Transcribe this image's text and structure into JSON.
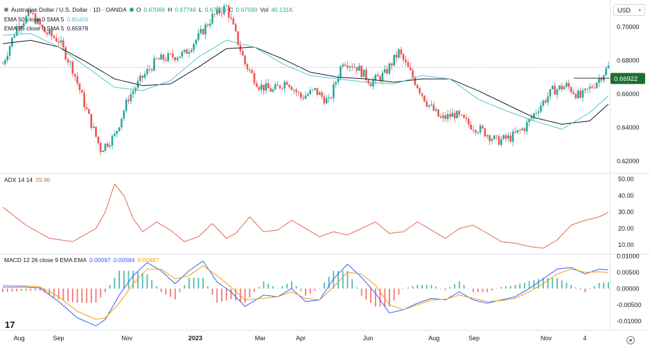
{
  "header": {
    "symbol": "Australian Dollar / U.S. Dollar · 1D · OANDA",
    "o_label": "O",
    "o_value": "0.67066",
    "h_label": "H",
    "h_value": "0.67746",
    "l_label": "L",
    "l_value": "0.67006",
    "c_label": "C",
    "c_value": "0.67590",
    "vol_label": "Vol",
    "vol_value": "46.131K",
    "ema50_label": "EMA 50 close 0 SMA 5",
    "ema50_value": "0.65400",
    "ema25_label": "EMA 25 close 0 SMA 5",
    "ema25_value": "0.65978"
  },
  "currency": "USD",
  "colors": {
    "up": "#26a69a",
    "down": "#ef5350",
    "ema50": "#131722",
    "ema25": "#4dc6d1",
    "adx": "#e0664f",
    "macd": "#2962ff",
    "signal": "#ff9800",
    "hist_up": "#26a69a",
    "hist_down": "#ef5350",
    "price_tag": "#1b6e2f"
  },
  "price_tag": "0.66922",
  "adx_panel": {
    "label": "ADX 14 14",
    "value": "29.96"
  },
  "macd_panel": {
    "label": "MACD 12 26 close 9 EMA EMA",
    "v1": "0.00097",
    "v2": "0.00584",
    "v3": "0.00487"
  },
  "icons": {
    "logo": "tradingview-logo-icon",
    "settings": "settings-icon"
  },
  "chart_data": [
    {
      "type": "candlestick",
      "title": "Australian Dollar / U.S. Dollar · 1D · OANDA",
      "x_ticks": [
        "Aug",
        "Sep",
        "Nov",
        "2023",
        "Mar",
        "Apr",
        "Jun",
        "Aug",
        "Sep",
        "Nov",
        "4"
      ],
      "y_ticks": [
        0.62,
        0.64,
        0.66,
        0.68,
        0.7
      ],
      "ylim": [
        0.613,
        0.716
      ],
      "series": [
        {
          "name": "EMA 50",
          "x": [
            0,
            12,
            24,
            36,
            48,
            60,
            72,
            84,
            96,
            108,
            120,
            132,
            144,
            156,
            168,
            180,
            192,
            204,
            216,
            228,
            240,
            252,
            260
          ],
          "values": [
            0.69,
            0.692,
            0.688,
            0.679,
            0.669,
            0.665,
            0.666,
            0.676,
            0.687,
            0.688,
            0.681,
            0.673,
            0.67,
            0.669,
            0.667,
            0.669,
            0.669,
            0.662,
            0.654,
            0.646,
            0.642,
            0.644,
            0.654
          ]
        },
        {
          "name": "EMA 25",
          "x": [
            0,
            12,
            24,
            36,
            48,
            60,
            72,
            84,
            96,
            108,
            120,
            132,
            144,
            156,
            168,
            180,
            192,
            204,
            216,
            228,
            240,
            252,
            260
          ],
          "values": [
            0.695,
            0.696,
            0.688,
            0.676,
            0.664,
            0.662,
            0.668,
            0.682,
            0.692,
            0.688,
            0.678,
            0.671,
            0.669,
            0.667,
            0.666,
            0.671,
            0.669,
            0.657,
            0.65,
            0.644,
            0.639,
            0.649,
            0.659
          ]
        }
      ],
      "candles_close_path": {
        "x": [
          0,
          6,
          12,
          18,
          24,
          30,
          36,
          42,
          48,
          54,
          60,
          66,
          72,
          78,
          84,
          90,
          96,
          100,
          104,
          110,
          116,
          122,
          128,
          134,
          140,
          146,
          152,
          158,
          164,
          170,
          176,
          182,
          188,
          194,
          200,
          206,
          212,
          218,
          224,
          230,
          236,
          242,
          248,
          254,
          260
        ],
        "values": [
          0.678,
          0.7,
          0.708,
          0.697,
          0.692,
          0.675,
          0.65,
          0.627,
          0.635,
          0.658,
          0.67,
          0.68,
          0.682,
          0.684,
          0.694,
          0.706,
          0.712,
          0.695,
          0.678,
          0.665,
          0.662,
          0.668,
          0.658,
          0.662,
          0.655,
          0.68,
          0.676,
          0.667,
          0.672,
          0.685,
          0.67,
          0.655,
          0.645,
          0.648,
          0.642,
          0.638,
          0.632,
          0.634,
          0.64,
          0.652,
          0.662,
          0.665,
          0.658,
          0.666,
          0.676
        ]
      }
    },
    {
      "type": "line",
      "title": "ADX 14 14",
      "y_ticks": [
        10,
        20,
        30,
        40,
        50
      ],
      "ylim": [
        5,
        53
      ],
      "series": [
        {
          "name": "ADX",
          "x": [
            0,
            10,
            20,
            30,
            40,
            44,
            48,
            52,
            56,
            60,
            66,
            72,
            78,
            84,
            90,
            96,
            100,
            106,
            112,
            118,
            124,
            130,
            136,
            142,
            148,
            154,
            160,
            166,
            172,
            178,
            184,
            190,
            196,
            202,
            208,
            214,
            220,
            226,
            232,
            238,
            244,
            250,
            256,
            260
          ],
          "values": [
            33,
            22,
            14,
            12,
            20,
            30,
            47,
            40,
            26,
            18,
            24,
            19,
            12,
            15,
            23,
            14,
            17,
            27,
            18,
            19,
            25,
            20,
            15,
            18,
            16,
            20,
            24,
            17,
            18,
            24,
            19,
            14,
            20,
            22,
            17,
            12,
            11,
            9,
            8,
            13,
            22,
            25,
            27,
            30
          ]
        }
      ]
    },
    {
      "type": "line",
      "title": "MACD 12 26 close 9 EMA EMA",
      "y_ticks": [
        -0.01,
        -0.005,
        0.0,
        0.005,
        0.01
      ],
      "ylim": [
        -0.0125,
        0.0105
      ],
      "series": [
        {
          "name": "MACD",
          "x": [
            0,
            10,
            16,
            24,
            32,
            40,
            44,
            50,
            56,
            62,
            68,
            74,
            80,
            86,
            92,
            98,
            104,
            112,
            118,
            124,
            130,
            136,
            142,
            148,
            154,
            160,
            166,
            172,
            178,
            184,
            190,
            196,
            202,
            208,
            214,
            220,
            226,
            232,
            238,
            244,
            250,
            256,
            260
          ],
          "values": [
            0.0005,
            0.0005,
            0.0002,
            -0.004,
            -0.009,
            -0.0115,
            -0.0095,
            -0.002,
            0.004,
            0.008,
            0.0055,
            0.0015,
            0.0055,
            0.0085,
            0.002,
            -0.001,
            -0.0055,
            -0.002,
            -0.0025,
            0.0,
            -0.004,
            -0.0035,
            0.003,
            0.0075,
            0.0035,
            -0.0015,
            -0.0075,
            -0.0065,
            -0.0045,
            -0.003,
            -0.0035,
            -0.001,
            -0.0035,
            -0.0045,
            -0.0035,
            -0.0025,
            0.0,
            0.003,
            0.006,
            0.0065,
            0.0045,
            0.006,
            0.0058
          ]
        },
        {
          "name": "Signal",
          "x": [
            0,
            10,
            16,
            24,
            32,
            40,
            44,
            50,
            56,
            62,
            68,
            74,
            80,
            86,
            92,
            98,
            104,
            112,
            118,
            124,
            130,
            136,
            142,
            148,
            154,
            160,
            166,
            172,
            178,
            184,
            190,
            196,
            202,
            208,
            214,
            220,
            226,
            232,
            238,
            244,
            250,
            256,
            260
          ],
          "values": [
            0.001,
            0.0008,
            0.0005,
            -0.0025,
            -0.007,
            -0.0095,
            -0.009,
            -0.0045,
            0.0015,
            0.006,
            0.006,
            0.003,
            0.004,
            0.007,
            0.004,
            0.0005,
            -0.0035,
            -0.003,
            -0.0025,
            -0.001,
            -0.003,
            -0.0035,
            0.0005,
            0.005,
            0.0045,
            0.001,
            -0.005,
            -0.0065,
            -0.005,
            -0.0035,
            -0.0033,
            -0.002,
            -0.003,
            -0.004,
            -0.0037,
            -0.003,
            -0.001,
            0.0015,
            0.0045,
            0.006,
            0.005,
            0.0052,
            0.0049
          ]
        }
      ]
    }
  ]
}
